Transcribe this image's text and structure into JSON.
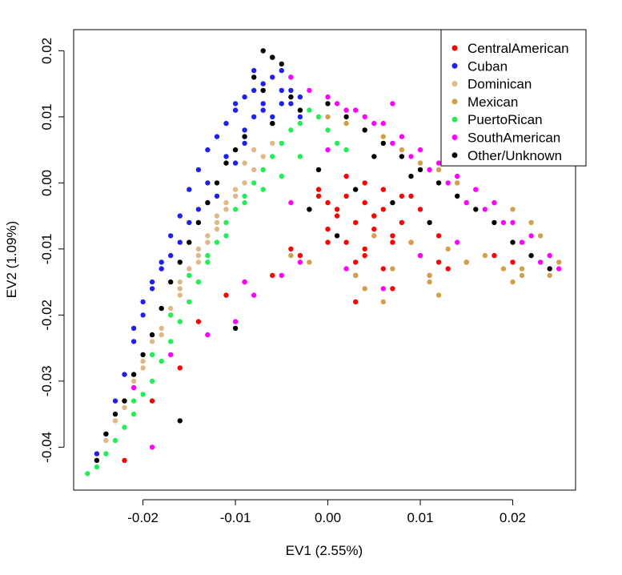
{
  "chart_data": {
    "type": "scatter",
    "title": "",
    "xlabel": "EV1 (2.55%)",
    "ylabel": "EV2 (1.09%)",
    "xlim": [
      -0.0275,
      0.0268
    ],
    "ylim": [
      -0.0465,
      0.0232
    ],
    "x_ticks": [
      -0.02,
      -0.01,
      0.0,
      0.01,
      0.02
    ],
    "x_tick_labels": [
      "-0.02",
      "-0.01",
      "0.00",
      "0.01",
      "0.02"
    ],
    "y_ticks": [
      -0.04,
      -0.03,
      -0.02,
      -0.01,
      0.0,
      0.01,
      0.02
    ],
    "y_tick_labels": [
      "-0.04",
      "-0.03",
      "-0.02",
      "-0.01",
      "0.00",
      "0.01",
      "0.02"
    ],
    "grid": false,
    "legend_position": "top-right",
    "series": [
      {
        "name": "CentralAmerican",
        "color": "#ff0000",
        "x": [
          0.002,
          0.004,
          0.006,
          0.003,
          0.005,
          0.007,
          0.001,
          0.0,
          -0.001,
          0.008,
          0.009,
          0.01,
          0.012,
          0.004,
          0.006,
          0.003,
          0.002,
          0.005,
          0.0,
          -0.004,
          -0.006,
          -0.009,
          -0.011,
          -0.014,
          -0.016,
          -0.019,
          -0.022,
          0.003,
          0.007,
          0.011,
          0.013,
          0.015,
          0.018,
          0.02,
          0.004,
          0.002,
          0.006,
          0.001,
          0.008,
          0.0,
          -0.002,
          -0.003,
          0.01,
          0.005,
          0.012,
          0.009,
          0.004,
          0.007,
          0.003,
          -0.001
        ],
        "y": [
          -0.002,
          -0.003,
          -0.004,
          -0.006,
          -0.007,
          -0.008,
          -0.005,
          -0.003,
          -0.001,
          -0.006,
          -0.009,
          -0.011,
          -0.012,
          -0.01,
          -0.013,
          -0.012,
          -0.009,
          -0.005,
          -0.009,
          -0.01,
          -0.014,
          -0.015,
          -0.017,
          -0.021,
          -0.028,
          -0.033,
          -0.042,
          -0.018,
          -0.016,
          -0.014,
          -0.013,
          -0.012,
          -0.011,
          -0.012,
          0.0,
          0.001,
          -0.001,
          -0.004,
          -0.002,
          -0.007,
          -0.004,
          -0.011,
          -0.004,
          -0.005,
          -0.008,
          -0.002,
          -0.011,
          -0.009,
          -0.014,
          -0.002
        ]
      },
      {
        "name": "Cuban",
        "color": "#2020ee",
        "x": [
          -0.006,
          -0.008,
          -0.007,
          -0.005,
          -0.004,
          -0.009,
          -0.01,
          -0.011,
          -0.012,
          -0.013,
          -0.014,
          -0.015,
          -0.016,
          -0.017,
          -0.018,
          -0.019,
          -0.02,
          -0.021,
          -0.022,
          -0.023,
          -0.024,
          -0.025,
          -0.006,
          -0.005,
          -0.003,
          -0.007,
          -0.008,
          -0.009,
          -0.004,
          -0.006,
          -0.011,
          -0.013,
          -0.015,
          -0.012,
          -0.01,
          -0.014,
          -0.016,
          -0.018,
          -0.02,
          -0.017,
          -0.019,
          -0.021,
          -0.008,
          -0.007,
          -0.005,
          -0.006,
          -0.009,
          -0.004,
          -0.003,
          -0.01
        ],
        "y": [
          0.019,
          0.017,
          0.015,
          0.014,
          0.012,
          0.013,
          0.011,
          0.009,
          0.007,
          0.005,
          0.002,
          -0.001,
          -0.005,
          -0.008,
          -0.012,
          -0.016,
          -0.02,
          -0.024,
          -0.029,
          -0.033,
          -0.038,
          -0.041,
          0.016,
          0.012,
          0.01,
          0.011,
          0.01,
          0.008,
          0.014,
          0.009,
          0.004,
          0.0,
          -0.006,
          -0.002,
          0.003,
          -0.004,
          -0.009,
          -0.013,
          -0.018,
          -0.011,
          -0.015,
          -0.022,
          0.014,
          0.012,
          0.017,
          0.01,
          0.006,
          0.016,
          0.013,
          0.012
        ]
      },
      {
        "name": "Dominican",
        "color": "#deb887",
        "x": [
          -0.006,
          -0.007,
          -0.008,
          -0.009,
          -0.01,
          -0.011,
          -0.012,
          -0.013,
          -0.014,
          -0.015,
          -0.016,
          -0.017,
          -0.018,
          -0.019,
          -0.02,
          -0.021,
          -0.022,
          -0.023,
          -0.024,
          -0.025,
          -0.008,
          -0.009,
          -0.01,
          -0.011,
          -0.012,
          -0.013,
          -0.014,
          -0.015,
          -0.016,
          -0.017,
          -0.018,
          -0.019,
          -0.02,
          -0.021,
          -0.022,
          -0.023,
          -0.007,
          -0.012,
          -0.014,
          -0.016
        ],
        "y": [
          0.006,
          0.004,
          0.002,
          0.0,
          -0.002,
          -0.004,
          -0.007,
          -0.009,
          -0.012,
          -0.014,
          -0.017,
          -0.02,
          -0.023,
          -0.026,
          -0.028,
          -0.031,
          -0.034,
          -0.036,
          -0.039,
          -0.042,
          0.005,
          0.003,
          -0.001,
          -0.003,
          -0.006,
          -0.008,
          -0.011,
          -0.013,
          -0.016,
          -0.019,
          -0.022,
          -0.024,
          -0.027,
          -0.03,
          -0.033,
          -0.035,
          0.002,
          -0.005,
          -0.01,
          -0.015
        ]
      },
      {
        "name": "Mexican",
        "color": "#d2a04a",
        "x": [
          0.0,
          0.004,
          0.008,
          0.012,
          0.016,
          0.02,
          0.023,
          0.025,
          0.002,
          0.006,
          0.01,
          0.014,
          0.018,
          0.022,
          0.005,
          0.009,
          0.013,
          0.017,
          0.021,
          0.024,
          0.007,
          0.011,
          0.015,
          0.019,
          0.003,
          -0.002,
          -0.004,
          0.004,
          0.011,
          0.006,
          0.012,
          0.021,
          0.02
        ],
        "y": [
          0.01,
          0.008,
          0.005,
          0.002,
          -0.001,
          -0.004,
          -0.008,
          -0.012,
          0.009,
          0.007,
          0.003,
          0.0,
          -0.003,
          -0.006,
          -0.008,
          -0.009,
          -0.01,
          -0.011,
          -0.013,
          -0.014,
          -0.013,
          -0.014,
          -0.012,
          -0.013,
          -0.014,
          -0.012,
          -0.011,
          -0.016,
          -0.015,
          -0.018,
          -0.017,
          -0.014,
          -0.015
        ]
      },
      {
        "name": "PuertoRican",
        "color": "#22ee55",
        "x": [
          -0.004,
          -0.003,
          -0.005,
          -0.006,
          -0.007,
          -0.008,
          -0.009,
          -0.01,
          -0.011,
          -0.012,
          -0.013,
          -0.014,
          -0.015,
          -0.016,
          -0.017,
          -0.018,
          -0.019,
          -0.02,
          -0.021,
          -0.022,
          -0.023,
          -0.024,
          -0.025,
          -0.026,
          -0.002,
          -0.001,
          -0.003,
          -0.005,
          -0.007,
          -0.009,
          -0.011,
          -0.013,
          -0.015,
          -0.017,
          -0.019,
          -0.021,
          0.0,
          0.001,
          0.002
        ],
        "y": [
          0.008,
          0.009,
          0.006,
          0.004,
          0.002,
          0.0,
          -0.002,
          -0.004,
          -0.006,
          -0.009,
          -0.012,
          -0.015,
          -0.018,
          -0.021,
          -0.024,
          -0.027,
          -0.03,
          -0.032,
          -0.035,
          -0.037,
          -0.039,
          -0.041,
          -0.043,
          -0.044,
          0.011,
          0.01,
          0.004,
          0.001,
          -0.001,
          -0.003,
          -0.008,
          -0.011,
          -0.014,
          -0.02,
          -0.026,
          -0.033,
          0.008,
          0.006,
          0.005
        ]
      },
      {
        "name": "SouthAmerican",
        "color": "#ff00ff",
        "x": [
          -0.004,
          -0.002,
          0.0,
          0.002,
          0.004,
          0.006,
          0.008,
          0.01,
          0.012,
          0.014,
          0.016,
          0.018,
          0.02,
          0.022,
          0.024,
          0.025,
          0.001,
          0.003,
          0.005,
          0.007,
          0.009,
          0.011,
          0.013,
          0.015,
          0.017,
          0.019,
          0.021,
          0.023,
          -0.003,
          -0.005,
          -0.008,
          -0.01,
          -0.013,
          -0.017,
          -0.019,
          -0.021,
          0.002,
          0.006,
          0.01,
          0.014,
          -0.009,
          -0.004,
          0.0,
          0.007
        ],
        "y": [
          0.016,
          0.014,
          0.013,
          0.011,
          0.01,
          0.009,
          0.007,
          0.005,
          0.003,
          0.001,
          -0.001,
          -0.003,
          -0.006,
          -0.008,
          -0.011,
          -0.013,
          0.012,
          0.011,
          0.009,
          0.006,
          0.004,
          0.002,
          0.0,
          -0.003,
          -0.004,
          -0.006,
          -0.009,
          -0.012,
          -0.012,
          -0.014,
          -0.017,
          -0.021,
          -0.023,
          -0.026,
          -0.04,
          -0.031,
          -0.013,
          -0.016,
          -0.011,
          -0.009,
          -0.015,
          -0.003,
          0.005,
          0.012
        ]
      },
      {
        "name": "Other/Unknown",
        "color": "#000000",
        "x": [
          -0.007,
          -0.006,
          -0.005,
          -0.008,
          -0.007,
          -0.004,
          -0.003,
          -0.006,
          -0.009,
          -0.01,
          -0.011,
          -0.012,
          -0.013,
          -0.014,
          -0.015,
          -0.016,
          -0.017,
          -0.018,
          -0.019,
          -0.02,
          -0.021,
          -0.022,
          -0.023,
          -0.024,
          -0.025,
          0.0,
          0.002,
          0.004,
          0.006,
          0.008,
          0.01,
          0.012,
          0.014,
          0.016,
          0.018,
          0.02,
          0.022,
          0.024,
          0.003,
          0.005,
          0.007,
          0.009,
          -0.001,
          -0.002,
          -0.01,
          -0.016,
          0.001,
          0.011
        ],
        "y": [
          0.02,
          0.019,
          0.018,
          0.016,
          0.014,
          0.013,
          0.011,
          0.009,
          0.007,
          0.005,
          0.003,
          0.0,
          -0.003,
          -0.006,
          -0.009,
          -0.012,
          -0.015,
          -0.019,
          -0.023,
          -0.026,
          -0.029,
          -0.033,
          -0.035,
          -0.038,
          -0.042,
          0.012,
          0.01,
          0.008,
          0.006,
          0.004,
          0.002,
          0.0,
          -0.002,
          -0.004,
          -0.006,
          -0.009,
          -0.011,
          -0.013,
          -0.001,
          0.004,
          -0.003,
          0.001,
          0.002,
          -0.004,
          -0.022,
          -0.036,
          -0.008,
          -0.006
        ]
      }
    ]
  }
}
